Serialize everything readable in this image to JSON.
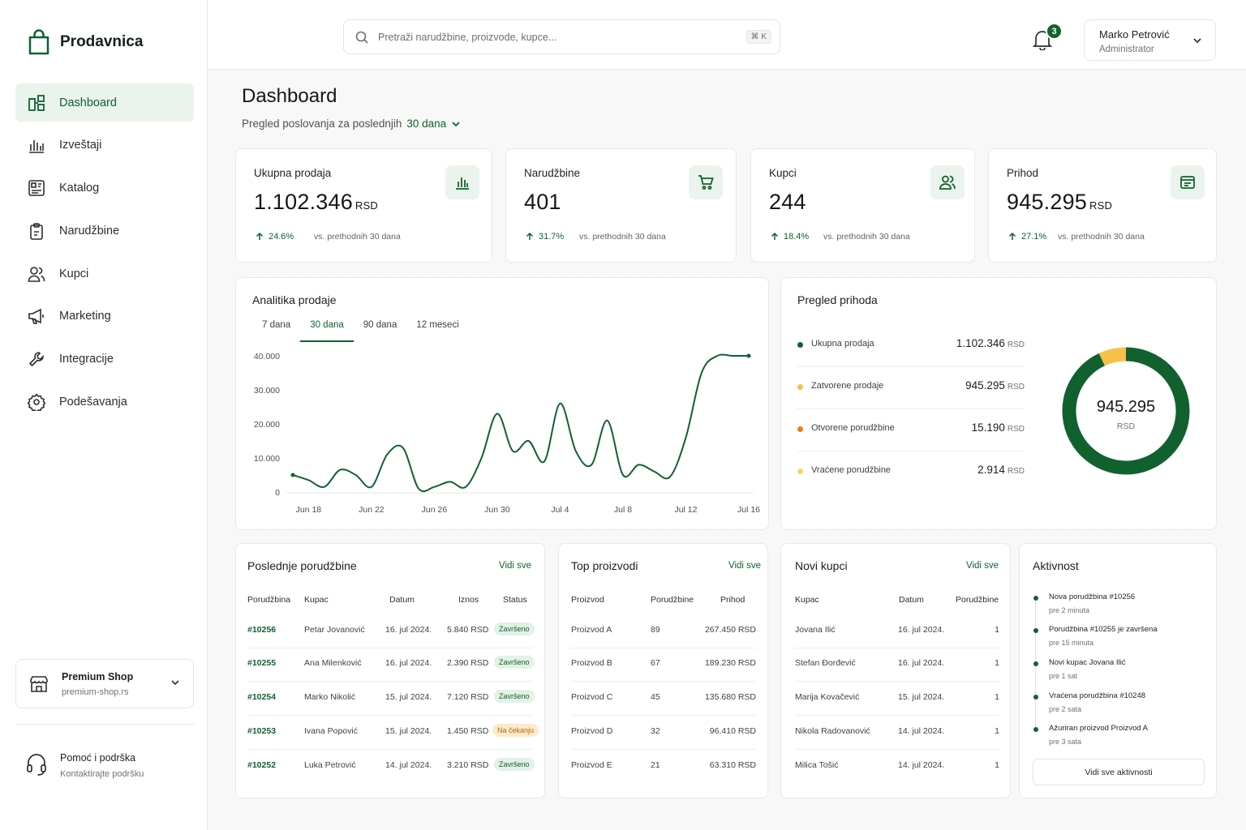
{
  "brand": {
    "name": "Prodavnica"
  },
  "sidebar": {
    "items": [
      {
        "label": "Dashboard",
        "icon": "dashboard-icon",
        "active": true
      },
      {
        "label": "Izveštaji",
        "icon": "bar-chart-icon"
      },
      {
        "label": "Katalog",
        "icon": "catalog-icon"
      },
      {
        "label": "Narudžbine",
        "icon": "clipboard-icon"
      },
      {
        "label": "Kupci",
        "icon": "users-icon"
      },
      {
        "label": "Marketing",
        "icon": "megaphone-icon"
      },
      {
        "label": "Integracije",
        "icon": "wrench-icon"
      },
      {
        "label": "Podešavanja",
        "icon": "gear-icon"
      }
    ],
    "shop": {
      "name": "Premium Shop",
      "url": "premium-shop.rs"
    },
    "help": {
      "title": "Pomoć i podrška",
      "subtitle": "Kontaktirajte podršku"
    }
  },
  "topbar": {
    "search_placeholder": "Pretraži narudžbine, proizvode, kupce...",
    "search_shortcut": "⌘ K",
    "notifications_count": "3",
    "user": {
      "name": "Marko Petrović",
      "role": "Administrator"
    }
  },
  "header": {
    "title": "Dashboard",
    "subtitle": "Pregled poslovanja za poslednjih",
    "period": "30 dana"
  },
  "stats": [
    {
      "label": "Ukupna prodaja",
      "value": "1.102.346",
      "unit": "RSD",
      "change": "24.6%",
      "vs": "vs. prethodnih 30 dana",
      "icon": "bar-chart-icon"
    },
    {
      "label": "Narudžbine",
      "value": "401",
      "unit": "",
      "change": "31.7%",
      "vs": "vs. prethodnih 30 dana",
      "icon": "cart-icon"
    },
    {
      "label": "Kupci",
      "value": "244",
      "unit": "",
      "change": "18.4%",
      "vs": "vs. prethodnih 30 dana",
      "icon": "users-icon"
    },
    {
      "label": "Prihod",
      "value": "945.295",
      "unit": "RSD",
      "change": "27.1%",
      "vs": "vs. prethodnih 30 dana",
      "icon": "receipt-icon"
    }
  ],
  "analytics": {
    "title": "Analitika prodaje",
    "tabs": [
      "7 dana",
      "30 dana",
      "90 dana",
      "12 meseci"
    ],
    "active_tab": "30 dana",
    "accent": "#11612f"
  },
  "chart_data": {
    "type": "line",
    "x": [
      "Jun 17",
      "Jun 18",
      "Jun 19",
      "Jun 20",
      "Jun 21",
      "Jun 22",
      "Jun 23",
      "Jun 24",
      "Jun 25",
      "Jun 26",
      "Jun 27",
      "Jun 28",
      "Jun 29",
      "Jun 30",
      "Jul 1",
      "Jul 2",
      "Jul 3",
      "Jul 4",
      "Jul 5",
      "Jul 6",
      "Jul 7",
      "Jul 8",
      "Jul 9",
      "Jul 10",
      "Jul 11",
      "Jul 12",
      "Jul 13",
      "Jul 14",
      "Jul 15",
      "Jul 16"
    ],
    "series": [
      {
        "values": [
          5000,
          3500,
          1500,
          6500,
          5000,
          1500,
          11000,
          13000,
          1000,
          1500,
          3000,
          1500,
          10000,
          23000,
          12000,
          15000,
          9000,
          26000,
          12000,
          8000,
          21000,
          5000,
          8000,
          6000,
          4500,
          16000,
          35000,
          40000,
          40000,
          40000
        ]
      }
    ],
    "xtick_labels": [
      "Jun 18",
      "Jun 22",
      "Jun 26",
      "Jun 30",
      "Jul 4",
      "Jul 8",
      "Jul 12",
      "Jul 16"
    ],
    "ytick_labels": [
      "0",
      "10.000",
      "20.000",
      "30.000",
      "40.000"
    ],
    "ylim": [
      0,
      40000
    ],
    "grid": false
  },
  "revenue_overview": {
    "title": "Pregled prihoda",
    "rows": [
      {
        "label": "Ukupna prodaja",
        "value": "1.102.346",
        "unit": "RSD",
        "color": "#11612f"
      },
      {
        "label": "Zatvorene prodaje",
        "value": "945.295",
        "unit": "RSD",
        "color": "#f6c04a"
      },
      {
        "label": "Otvorene porudžbine",
        "value": "15.190",
        "unit": "RSD",
        "color": "#f07b14"
      },
      {
        "label": "Vraćene porudžbine",
        "value": "2.914",
        "unit": "RSD",
        "color": "#f8d45c"
      }
    ],
    "donut_value": "945.295",
    "donut_unit": "RSD",
    "donut_segments": [
      {
        "share": 0.93,
        "color": "#11612f"
      },
      {
        "share": 0.07,
        "color": "#f6c04a"
      }
    ]
  },
  "recent_orders": {
    "title": "Poslednje porudžbine",
    "view_all": "Vidi sve",
    "columns": [
      "Porudžbina",
      "Kupac",
      "Datum",
      "Iznos",
      "Status"
    ],
    "rows": [
      {
        "id": "#10256",
        "customer": "Petar Jovanović",
        "date": "16. jul 2024.",
        "amount": "5.840 RSD",
        "status": "Završeno"
      },
      {
        "id": "#10255",
        "customer": "Ana Milenković",
        "date": "16. jul 2024.",
        "amount": "2.390 RSD",
        "status": "Završeno"
      },
      {
        "id": "#10254",
        "customer": "Marko Nikolić",
        "date": "15. jul 2024.",
        "amount": "7.120 RSD",
        "status": "Završeno"
      },
      {
        "id": "#10253",
        "customer": "Ivana Popović",
        "date": "15. jul 2024.",
        "amount": "1.450 RSD",
        "status": "Na čekanju"
      },
      {
        "id": "#10252",
        "customer": "Luka Petrović",
        "date": "14. jul 2024.",
        "amount": "3.210 RSD",
        "status": "Završeno"
      }
    ]
  },
  "top_products": {
    "title": "Top proizvodi",
    "view_all": "Vidi sve",
    "columns": [
      "Proizvod",
      "Porudžbine",
      "Prihod"
    ],
    "rows": [
      {
        "name": "Proizvod A",
        "orders": "89",
        "revenue": "267.450 RSD"
      },
      {
        "name": "Proizvod B",
        "orders": "67",
        "revenue": "189.230 RSD"
      },
      {
        "name": "Proizvod C",
        "orders": "45",
        "revenue": "135.680 RSD"
      },
      {
        "name": "Proizvod D",
        "orders": "32",
        "revenue": "96.410 RSD"
      },
      {
        "name": "Proizvod E",
        "orders": "21",
        "revenue": "63.310 RSD"
      }
    ]
  },
  "new_customers": {
    "title": "Novi kupci",
    "view_all": "Vidi sve",
    "columns": [
      "Kupac",
      "Datum",
      "Porudžbine"
    ],
    "rows": [
      {
        "name": "Jovana Ilić",
        "date": "16. jul 2024.",
        "orders": "1"
      },
      {
        "name": "Stefan Đorđević",
        "date": "16. jul 2024.",
        "orders": "1"
      },
      {
        "name": "Marija Kovačević",
        "date": "15. jul 2024.",
        "orders": "1"
      },
      {
        "name": "Nikola Radovanović",
        "date": "14. jul 2024.",
        "orders": "1"
      },
      {
        "name": "Milica Tošić",
        "date": "14. jul 2024.",
        "orders": "1"
      }
    ]
  },
  "activity": {
    "title": "Aktivnost",
    "items": [
      {
        "title": "Nova porudžbina #10256",
        "time": "pre 2 minuta"
      },
      {
        "title": "Porudžbina #10255 je završena",
        "time": "pre 15 minuta"
      },
      {
        "title": "Novi kupac Jovana Ilić",
        "time": "pre 1 sat"
      },
      {
        "title": "Vraćena porudžbina #10248",
        "time": "pre 2 sata"
      },
      {
        "title": "Ažuriran proizvod Proizvod A",
        "time": "pre 3 sata"
      }
    ],
    "button": "Vidi sve aktivnosti"
  }
}
